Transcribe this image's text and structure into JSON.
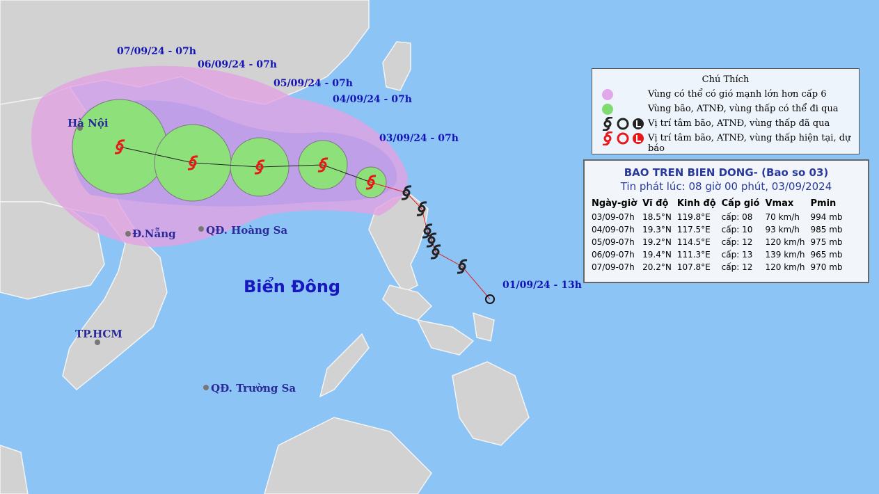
{
  "map_labels": {
    "dates": [
      "07/09/24 - 07h",
      "06/09/24 - 07h",
      "05/09/24 - 07h",
      "04/09/24 - 07h",
      "03/09/24 - 07h",
      "01/09/24 - 13h"
    ],
    "places": [
      "Hà Nội",
      "Đ.Nẵng",
      "QĐ. Hoàng Sa",
      "TP.HCM",
      "QĐ. Trường Sa"
    ],
    "sea": "Biển Đông"
  },
  "legend": {
    "title": "Chú Thích",
    "items": [
      "Vùng có thể có gió mạnh lớn hơn cấp 6",
      "Vùng bão, ATNĐ, vùng thấp có thể đi qua",
      "Vị trí tâm bão, ATNĐ, vùng thấp đã qua",
      "Vị trí tâm bão, ATNĐ, vùng thấp hiện tại, dự báo"
    ]
  },
  "table": {
    "title": "BAO TREN BIEN DONG- (Bao so 03)",
    "subtitle": "Tin phát lúc: 08 giờ 00 phút, 03/09/2024",
    "columns": [
      "Ngày-giờ",
      "Vĩ độ",
      "Kinh độ",
      "Cấp gió",
      "Vmax",
      "Pmin"
    ],
    "rows": [
      [
        "03/09-07h",
        "18.5°N",
        "119.8°E",
        "cấp: 08",
        "70 km/h",
        "994 mb"
      ],
      [
        "04/09-07h",
        "19.3°N",
        "117.5°E",
        "cấp: 10",
        "93 km/h",
        "985 mb"
      ],
      [
        "05/09-07h",
        "19.2°N",
        "114.5°E",
        "cấp: 12",
        "120 km/h",
        "975 mb"
      ],
      [
        "06/09-07h",
        "19.4°N",
        "111.3°E",
        "cấp: 13",
        "139 km/h",
        "965 mb"
      ],
      [
        "07/09-07h",
        "20.2°N",
        "107.8°E",
        "cấp: 12",
        "120 km/h",
        "970 mb"
      ]
    ]
  }
}
